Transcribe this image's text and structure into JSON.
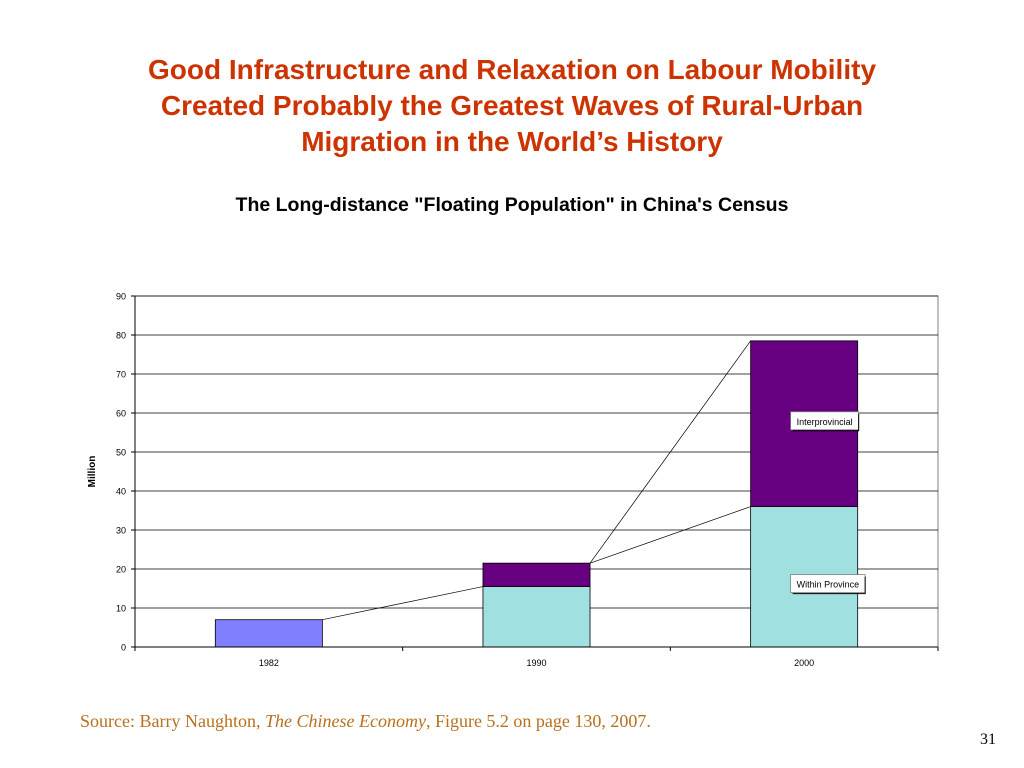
{
  "slide": {
    "title_lines": [
      "Good Infrastructure and Relaxation on Labour Mobility",
      "Created Probably the Greatest Waves of Rural-Urban",
      "Migration in the World’s History"
    ],
    "source_prefix": "Source: Barry Naughton, ",
    "source_italic": "The Chinese Economy",
    "source_suffix": ", Figure 5.2 on page 130, 2007.",
    "page_number": "31"
  },
  "chart_data": {
    "type": "bar",
    "stacked": true,
    "title": "The Long-distance \"Floating Population\" in China's Census",
    "xlabel": "",
    "ylabel": "Million",
    "ylim": [
      0,
      90
    ],
    "yticks": [
      0,
      10,
      20,
      30,
      40,
      50,
      60,
      70,
      80,
      90
    ],
    "categories": [
      "1982",
      "1990",
      "2000"
    ],
    "grid": true,
    "series": [
      {
        "name": "Within Province",
        "values": [
          7,
          15.5,
          36
        ],
        "colors": [
          "#8080ff",
          "#a0e0e0",
          "#a0e0e0"
        ]
      },
      {
        "name": "Interprovincial",
        "values": [
          0,
          6,
          42.5
        ],
        "colors": [
          "#660080",
          "#660080",
          "#660080"
        ]
      }
    ],
    "annotations": [
      "Interprovincial",
      "Within Province"
    ],
    "colors": {
      "grid": "#000000",
      "plot_border": "#808080",
      "callout_border": "#808080"
    }
  }
}
